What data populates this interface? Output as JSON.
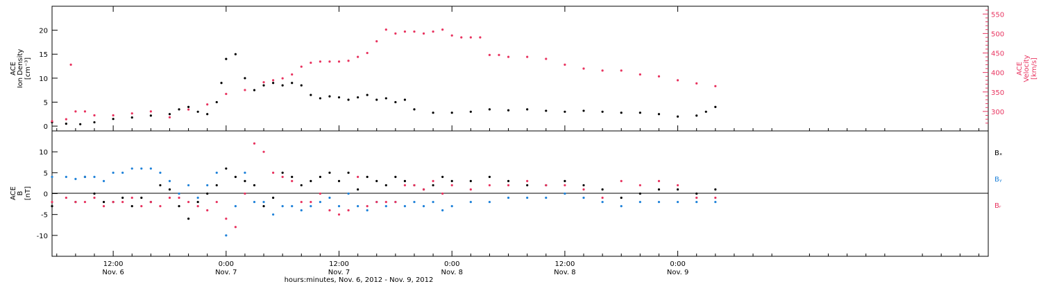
{
  "xaxis": {
    "title": "hours:minutes, Nov.  6, 2012 - Nov.  9, 2012",
    "range_hours": [
      -18.5,
      81
    ],
    "ticks": [
      {
        "h": -12,
        "time": "12:00",
        "date": "Nov. 6"
      },
      {
        "h": 0,
        "time": "0:00",
        "date": "Nov. 7"
      },
      {
        "h": 12,
        "time": "12:00",
        "date": "Nov. 7"
      },
      {
        "h": 24,
        "time": "0:00",
        "date": "Nov. 8"
      },
      {
        "h": 36,
        "time": "12:00",
        "date": "Nov. 8"
      },
      {
        "h": 48,
        "time": "0:00",
        "date": "Nov. 9"
      }
    ]
  },
  "colors": {
    "density": "#000000",
    "velocity": "#e8335f",
    "bx": "#000000",
    "by": "#1f82d9",
    "bz": "#e8335f"
  },
  "chart_data": [
    {
      "type": "scatter",
      "panel": "top",
      "ylabel_left": [
        "ACE",
        "Ion Density",
        "[cm⁻³]"
      ],
      "ylabel_right": [
        "ACE",
        "Velocity",
        "[km/s]"
      ],
      "ylim_left": [
        -1,
        25
      ],
      "ylim_right": [
        250,
        570
      ],
      "yticks_left": [
        0,
        5,
        10,
        15,
        20
      ],
      "yticks_right": [
        300,
        350,
        400,
        450,
        500,
        550
      ],
      "series": [
        {
          "key": "density",
          "axis": "left",
          "x": [
            -18.5,
            -17,
            -15.5,
            -14,
            -12,
            -10,
            -8,
            -6,
            -5,
            -4,
            -3,
            -2,
            -1,
            -0.5,
            0,
            1,
            2,
            3,
            4,
            5,
            6,
            7,
            8,
            9,
            10,
            11,
            12,
            13,
            14,
            15,
            16,
            17,
            18,
            19,
            20,
            22,
            24,
            26,
            28,
            30,
            32,
            34,
            36,
            38,
            40,
            42,
            44,
            46,
            48,
            50,
            51,
            52
          ],
          "y": [
            0.8,
            0.5,
            0.4,
            0.8,
            1.5,
            1.8,
            2.2,
            2.5,
            3.5,
            4.0,
            3.0,
            2.5,
            5.0,
            9.0,
            14.0,
            15.0,
            10.0,
            7.5,
            8.5,
            9.0,
            8.5,
            9.0,
            8.5,
            6.5,
            5.8,
            6.2,
            6.0,
            5.5,
            6.0,
            6.5,
            5.5,
            5.8,
            5.0,
            5.5,
            3.5,
            2.8,
            2.8,
            3.0,
            3.5,
            3.3,
            3.5,
            3.2,
            3.0,
            3.2,
            3.0,
            2.8,
            2.8,
            2.5,
            2.0,
            2.2,
            3.0,
            4.0
          ]
        },
        {
          "key": "velocity",
          "axis": "right",
          "x": [
            -18.5,
            -17,
            -16.5,
            -16,
            -15,
            -14,
            -12,
            -10,
            -8,
            -6,
            -4,
            -2,
            0,
            2,
            4,
            5,
            6,
            7,
            8,
            9,
            10,
            11,
            12,
            13,
            14,
            15,
            16,
            17,
            18,
            19,
            20,
            21,
            22,
            23,
            24,
            25,
            26,
            27,
            28,
            29,
            30,
            32,
            34,
            36,
            38,
            40,
            42,
            44,
            46,
            48,
            50,
            52
          ],
          "y": [
            275,
            280,
            420,
            300,
            300,
            290,
            290,
            295,
            300,
            285,
            305,
            318,
            345,
            355,
            375,
            380,
            385,
            395,
            415,
            425,
            428,
            428,
            428,
            430,
            440,
            450,
            480,
            510,
            500,
            505,
            505,
            500,
            505,
            510,
            495,
            490,
            490,
            490,
            445,
            445,
            440,
            440,
            435,
            420,
            410,
            405,
            405,
            395,
            390,
            380,
            372,
            365
          ]
        }
      ]
    },
    {
      "type": "scatter",
      "panel": "bottom",
      "ylabel_left": [
        "ACE",
        "B",
        "[nT]"
      ],
      "ylim": [
        -15,
        15
      ],
      "yticks": [
        -10,
        -5,
        0,
        5,
        10
      ],
      "zero_line": true,
      "series": [
        {
          "key": "bx",
          "name": "Bₓ",
          "x": [
            -18.5,
            -16,
            -15,
            -14,
            -13,
            -12,
            -11,
            -10,
            -9,
            -8,
            -7,
            -6,
            -5,
            -4,
            -3,
            -2,
            -1,
            0,
            1,
            2,
            3,
            4,
            5,
            6,
            7,
            8,
            9,
            10,
            11,
            12,
            13,
            14,
            15,
            16,
            17,
            18,
            19,
            20,
            21,
            22,
            23,
            24,
            26,
            28,
            30,
            32,
            34,
            36,
            38,
            40,
            42,
            44,
            46,
            48,
            50,
            52
          ],
          "y": [
            -3,
            -2,
            4,
            0,
            -2,
            -2,
            -1,
            -3,
            -1,
            -2,
            2,
            1,
            -3,
            -6,
            -2,
            0,
            2,
            6,
            4,
            3,
            2,
            -3,
            -1,
            5,
            4,
            2,
            3,
            4,
            5,
            3,
            5,
            1,
            4,
            3,
            2,
            4,
            3,
            2,
            1,
            2,
            4,
            3,
            3,
            4,
            3,
            2,
            2,
            3,
            2,
            1,
            -1,
            0,
            1,
            1,
            0,
            1
          ]
        },
        {
          "key": "by",
          "name": "Bᵧ",
          "x": [
            -18.5,
            -17,
            -16,
            -15,
            -14,
            -13,
            -12,
            -11,
            -10,
            -9,
            -8,
            -7,
            -6,
            -5,
            -4,
            -3,
            -2,
            -1,
            0,
            1,
            2,
            3,
            4,
            5,
            6,
            7,
            8,
            9,
            10,
            11,
            12,
            13,
            14,
            15,
            16,
            17,
            18,
            19,
            20,
            21,
            22,
            23,
            24,
            26,
            28,
            30,
            32,
            34,
            36,
            38,
            40,
            42,
            44,
            46,
            48,
            50,
            52
          ],
          "y": [
            4,
            4,
            3.5,
            4,
            4,
            3,
            5,
            5,
            6,
            6,
            6,
            5,
            3,
            0,
            2,
            -1,
            2,
            5,
            -10,
            -3,
            5,
            -2,
            -2,
            -5,
            -3,
            -3,
            -4,
            -3,
            -2,
            -1,
            -3,
            0,
            -3,
            -4,
            -2,
            -3,
            -2,
            -3,
            -2,
            -3,
            -2,
            -4,
            -3,
            -2,
            -2,
            -1,
            -1,
            -1,
            0,
            -1,
            -2,
            -3,
            -2,
            -2,
            -2,
            -2,
            -2
          ]
        },
        {
          "key": "bz",
          "name": "Bᵣ",
          "x": [
            -18.5,
            -17,
            -16,
            -15,
            -14,
            -13,
            -12,
            -11,
            -10,
            -9,
            -8,
            -7,
            -6,
            -5,
            -4,
            -3,
            -2,
            -1,
            0,
            1,
            2,
            3,
            4,
            5,
            6,
            7,
            8,
            9,
            10,
            11,
            12,
            13,
            14,
            15,
            16,
            17,
            18,
            19,
            20,
            21,
            22,
            23,
            24,
            26,
            28,
            30,
            32,
            34,
            36,
            38,
            40,
            42,
            44,
            46,
            48,
            50,
            52
          ],
          "y": [
            -2,
            -1,
            -2,
            -2,
            -1,
            -3,
            -2,
            -2,
            -1,
            -3,
            -2,
            -3,
            -1,
            -1,
            -2,
            -3,
            -4,
            -2,
            -6,
            -8,
            0,
            12,
            10,
            5,
            4,
            3,
            -2,
            -2,
            0,
            -4,
            -5,
            -4,
            4,
            -3,
            -2,
            -2,
            -2,
            2,
            2,
            1,
            3,
            0,
            2,
            1,
            2,
            2,
            3,
            2,
            2,
            1,
            -1,
            3,
            2,
            3,
            2,
            -1,
            -1
          ]
        }
      ],
      "legend": [
        "Bₓ",
        "Bᵧ",
        "Bᵣ"
      ]
    }
  ]
}
